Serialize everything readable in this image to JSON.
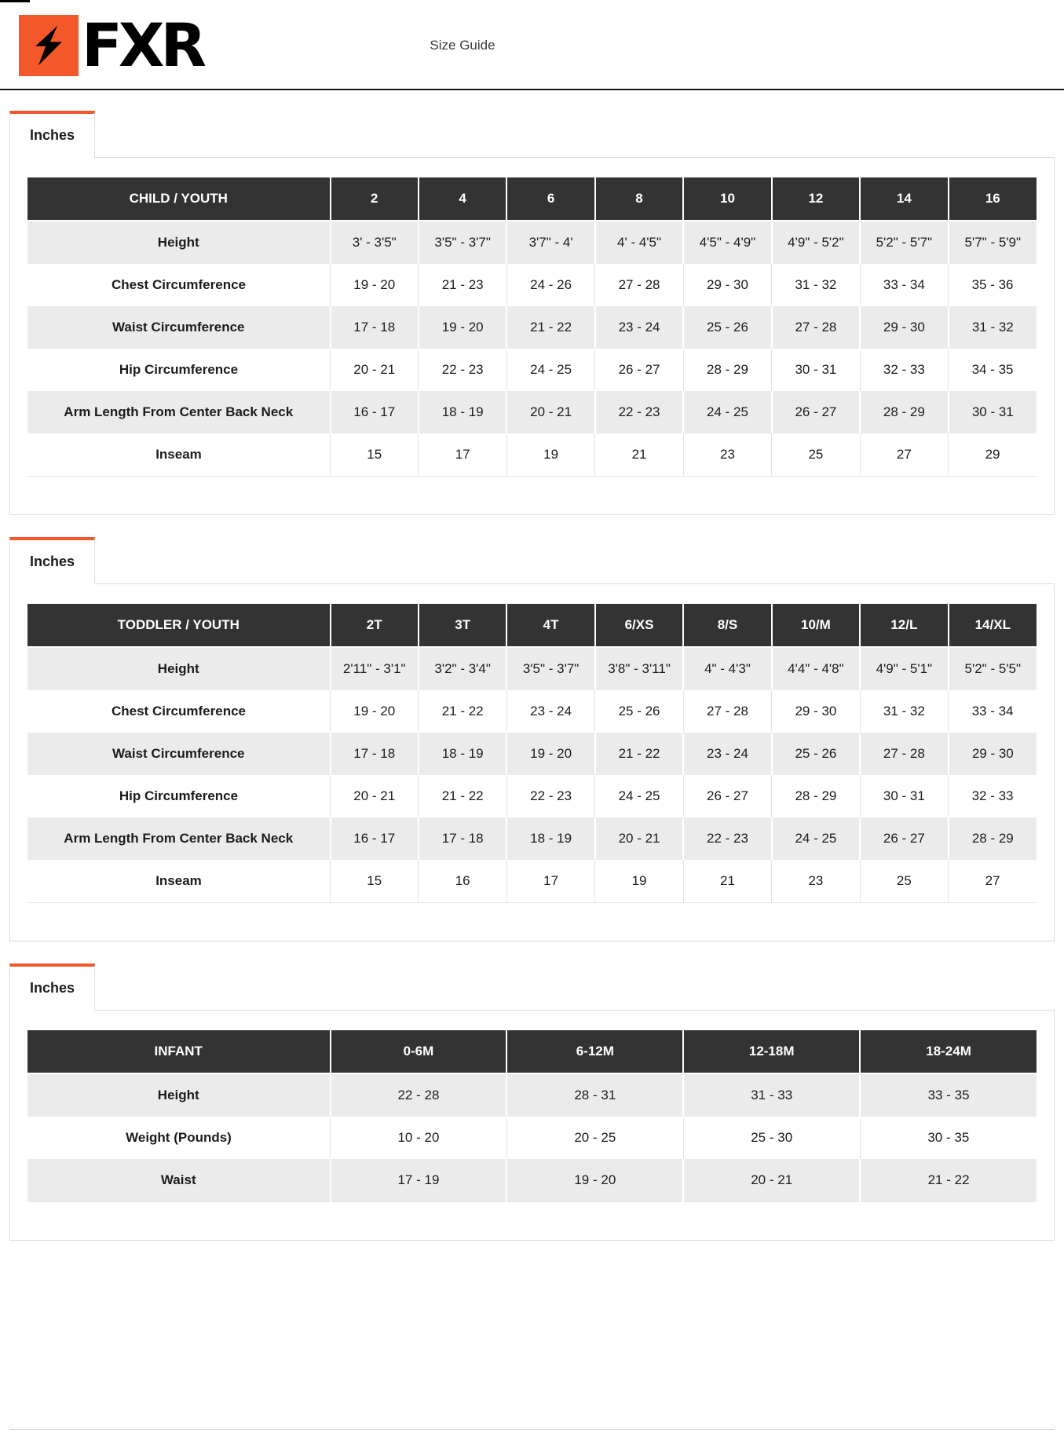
{
  "page": {
    "brand": "FXR",
    "title": "Size Guide",
    "logo_icon": "fxr-blade-icon"
  },
  "colors": {
    "accent": "#F2582A",
    "table_header_bg": "#333333",
    "row_alt_bg": "#EBEBEB",
    "logo_bg": "#F2582A"
  },
  "sections": [
    {
      "tab_label": "Inches",
      "table": {
        "corner_label": "CHILD / YOUTH",
        "columns": [
          "2",
          "4",
          "6",
          "8",
          "10",
          "12",
          "14",
          "16"
        ],
        "rows": [
          {
            "label": "Height",
            "values": [
              "3' - 3'5\"",
              "3'5\" - 3'7\"",
              "3'7\" - 4'",
              "4' - 4'5\"",
              "4'5\" - 4'9\"",
              "4'9\" - 5'2\"",
              "5'2\" - 5'7\"",
              "5'7\" - 5'9\""
            ]
          },
          {
            "label": "Chest Circumference",
            "values": [
              "19 - 20",
              "21 - 23",
              "24 - 26",
              "27 - 28",
              "29 - 30",
              "31 - 32",
              "33 - 34",
              "35 - 36"
            ]
          },
          {
            "label": "Waist Circumference",
            "values": [
              "17 - 18",
              "19 - 20",
              "21 - 22",
              "23 - 24",
              "25 - 26",
              "27 - 28",
              "29 - 30",
              "31 - 32"
            ]
          },
          {
            "label": "Hip Circumference",
            "values": [
              "20 - 21",
              "22 - 23",
              "24 - 25",
              "26 - 27",
              "28 - 29",
              "30 - 31",
              "32 - 33",
              "34 - 35"
            ]
          },
          {
            "label": "Arm Length From Center Back Neck",
            "values": [
              "16 - 17",
              "18 - 19",
              "20 - 21",
              "22 - 23",
              "24 - 25",
              "26 - 27",
              "28 - 29",
              "30 - 31"
            ]
          },
          {
            "label": "Inseam",
            "values": [
              "15",
              "17",
              "19",
              "21",
              "23",
              "25",
              "27",
              "29"
            ]
          }
        ]
      }
    },
    {
      "tab_label": "Inches",
      "table": {
        "corner_label": "TODDLER / YOUTH",
        "columns": [
          "2T",
          "3T",
          "4T",
          "6/XS",
          "8/S",
          "10/M",
          "12/L",
          "14/XL"
        ],
        "rows": [
          {
            "label": "Height",
            "values": [
              "2'11\" - 3'1\"",
              "3'2\" - 3'4\"",
              "3'5\" - 3'7\"",
              "3'8\" - 3'11\"",
              "4\" - 4'3\"",
              "4'4\" - 4'8\"",
              "4'9\" - 5'1\"",
              "5'2\" - 5'5\""
            ]
          },
          {
            "label": "Chest Circumference",
            "values": [
              "19 - 20",
              "21 - 22",
              "23 - 24",
              "25 - 26",
              "27 - 28",
              "29 - 30",
              "31 - 32",
              "33 - 34"
            ]
          },
          {
            "label": "Waist Circumference",
            "values": [
              "17 - 18",
              "18 - 19",
              "19 - 20",
              "21 - 22",
              "23 - 24",
              "25 - 26",
              "27 - 28",
              "29 - 30"
            ]
          },
          {
            "label": "Hip Circumference",
            "values": [
              "20 - 21",
              "21 - 22",
              "22 - 23",
              "24 - 25",
              "26 - 27",
              "28 - 29",
              "30 - 31",
              "32 - 33"
            ]
          },
          {
            "label": "Arm Length From Center Back Neck",
            "values": [
              "16 - 17",
              "17 - 18",
              "18 - 19",
              "20 - 21",
              "22 - 23",
              "24 - 25",
              "26 - 27",
              "28 - 29"
            ]
          },
          {
            "label": "Inseam",
            "values": [
              "15",
              "16",
              "17",
              "19",
              "21",
              "23",
              "25",
              "27"
            ]
          }
        ]
      }
    },
    {
      "tab_label": "Inches",
      "table": {
        "corner_label": "INFANT",
        "columns": [
          "0-6M",
          "6-12M",
          "12-18M",
          "18-24M"
        ],
        "rows": [
          {
            "label": "Height",
            "values": [
              "22 - 28",
              "28 - 31",
              "31 - 33",
              "33 - 35"
            ]
          },
          {
            "label": "Weight (Pounds)",
            "values": [
              "10 - 20",
              "20 - 25",
              "25 - 30",
              "30 - 35"
            ]
          },
          {
            "label": "Waist",
            "values": [
              "17 - 19",
              "19 - 20",
              "20 - 21",
              "21 - 22"
            ]
          }
        ]
      }
    }
  ]
}
